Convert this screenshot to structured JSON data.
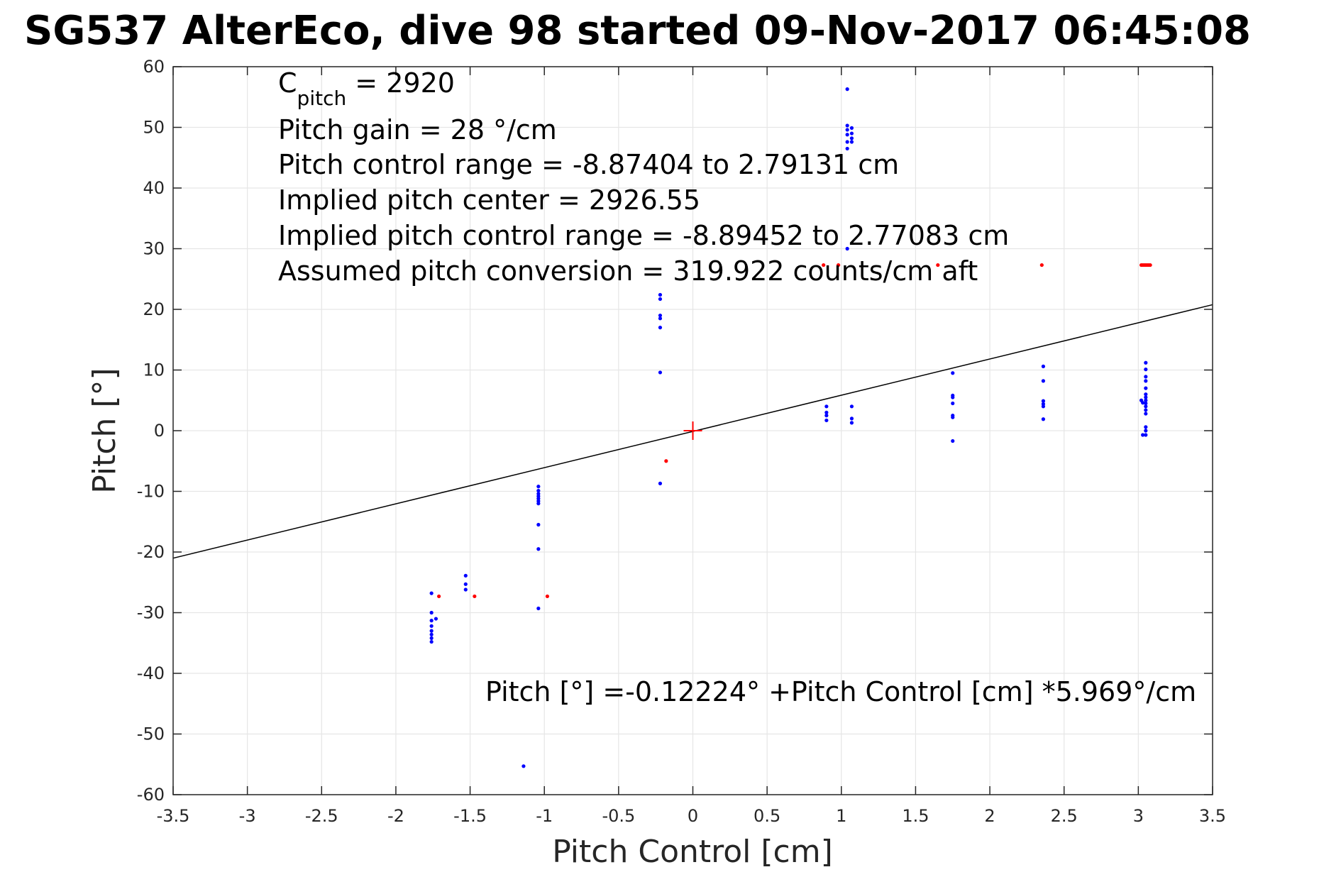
{
  "chart_data": {
    "type": "scatter",
    "title": "SG537 AlterEco, dive 98 started 09-Nov-2017 06:45:08",
    "xlabel": "Pitch Control [cm]",
    "ylabel": "Pitch [°]",
    "xlim": [
      -3.5,
      3.5
    ],
    "ylim": [
      -60,
      60
    ],
    "xticks": [
      -3.5,
      -3,
      -2.5,
      -2,
      -1.5,
      -1,
      -0.5,
      0,
      0.5,
      1,
      1.5,
      2,
      2.5,
      3,
      3.5
    ],
    "xtick_labels": [
      "-3.5",
      "-3",
      "-2.5",
      "-2",
      "-1.5",
      "-1",
      "-0.5",
      "0",
      "0.5",
      "1",
      "1.5",
      "2",
      "2.5",
      "3",
      "3.5"
    ],
    "yticks": [
      60,
      50,
      40,
      30,
      20,
      10,
      0,
      -10,
      -20,
      -30,
      -40,
      -50,
      -60
    ],
    "ytick_labels": [
      "60",
      "50",
      "40",
      "30",
      "20",
      "10",
      "0",
      "-10",
      "-20",
      "-30",
      "-40",
      "-50",
      "-60"
    ],
    "grid": true,
    "annotations": {
      "c_pitch_main": "C",
      "c_pitch_sub": "pitch",
      "c_pitch_value": " = 2920",
      "lines": [
        "Pitch gain = 28 °/cm",
        "Pitch control range = -8.87404 to 2.79131 cm",
        "Implied pitch center = 2926.55",
        "Implied pitch control range = -8.89452 to 2.77083 cm",
        "Assumed pitch conversion = 319.922 counts/cm aft"
      ],
      "fit_equation": "Pitch [°] =-0.12224° +Pitch Control [cm] *5.969°/cm"
    },
    "colors": {
      "blue": "#0000ff",
      "red": "#ff0000",
      "fit": "#000000",
      "grid": "#e6e6e6"
    },
    "fit_line": {
      "intercept": -0.12224,
      "slope": 5.969
    },
    "center_marker": {
      "x": 0,
      "y": 0,
      "color": "#ff0000"
    },
    "series": [
      {
        "color": "blue",
        "points": [
          [
            -1.76,
            -26.8
          ],
          [
            -1.76,
            -30.0
          ],
          [
            -1.76,
            -31.3
          ],
          [
            -1.76,
            -32.2
          ],
          [
            -1.76,
            -33.0
          ],
          [
            -1.76,
            -33.6
          ],
          [
            -1.76,
            -34.2
          ],
          [
            -1.76,
            -34.8
          ],
          [
            -1.73,
            -31.0
          ],
          [
            -1.53,
            -23.9
          ],
          [
            -1.53,
            -25.3
          ],
          [
            -1.53,
            -26.2
          ],
          [
            -1.04,
            -9.2
          ],
          [
            -1.04,
            -9.9
          ],
          [
            -1.04,
            -10.4
          ],
          [
            -1.04,
            -10.8
          ],
          [
            -1.04,
            -11.2
          ],
          [
            -1.04,
            -11.6
          ],
          [
            -1.04,
            -12.0
          ],
          [
            -1.04,
            -15.5
          ],
          [
            -1.04,
            -19.5
          ],
          [
            -1.04,
            -29.3
          ],
          [
            -1.14,
            -55.3
          ],
          [
            -0.22,
            22.4
          ],
          [
            -0.22,
            21.7
          ],
          [
            -0.22,
            19.0
          ],
          [
            -0.22,
            18.5
          ],
          [
            -0.22,
            17.0
          ],
          [
            -0.22,
            9.6
          ],
          [
            -0.22,
            -8.7
          ],
          [
            1.04,
            56.3
          ],
          [
            1.04,
            50.3
          ],
          [
            1.04,
            49.6
          ],
          [
            1.04,
            48.8
          ],
          [
            1.04,
            47.6
          ],
          [
            1.04,
            46.5
          ],
          [
            1.04,
            30.0
          ],
          [
            1.07,
            49.9
          ],
          [
            1.07,
            49.0
          ],
          [
            1.07,
            48.2
          ],
          [
            1.07,
            47.6
          ],
          [
            0.9,
            4.0
          ],
          [
            0.9,
            3.0
          ],
          [
            0.9,
            2.5
          ],
          [
            0.9,
            1.7
          ],
          [
            1.07,
            4.0
          ],
          [
            1.07,
            2.0
          ],
          [
            1.07,
            1.3
          ],
          [
            1.75,
            9.5
          ],
          [
            1.75,
            5.8
          ],
          [
            1.75,
            5.5
          ],
          [
            1.75,
            4.5
          ],
          [
            1.75,
            2.5
          ],
          [
            1.75,
            2.2
          ],
          [
            1.75,
            -1.7
          ],
          [
            2.36,
            10.6
          ],
          [
            2.36,
            8.2
          ],
          [
            2.36,
            4.9
          ],
          [
            2.36,
            4.4
          ],
          [
            2.36,
            4.0
          ],
          [
            2.36,
            1.9
          ],
          [
            3.05,
            11.2
          ],
          [
            3.05,
            10.1
          ],
          [
            3.05,
            8.9
          ],
          [
            3.05,
            8.2
          ],
          [
            3.05,
            7.0
          ],
          [
            3.05,
            6.0
          ],
          [
            3.05,
            5.5
          ],
          [
            3.05,
            5.0
          ],
          [
            3.05,
            4.5
          ],
          [
            3.05,
            4.0
          ],
          [
            3.05,
            3.4
          ],
          [
            3.05,
            2.8
          ],
          [
            3.05,
            0.6
          ],
          [
            3.05,
            0.0
          ],
          [
            3.05,
            -0.7
          ],
          [
            3.02,
            5.0
          ],
          [
            3.03,
            4.6
          ],
          [
            3.03,
            -0.7
          ]
        ]
      },
      {
        "color": "red",
        "points": [
          [
            -1.71,
            -27.3
          ],
          [
            -1.47,
            -27.3
          ],
          [
            -0.98,
            -27.3
          ],
          [
            -0.18,
            -5.0
          ],
          [
            0.88,
            27.3
          ],
          [
            0.98,
            27.3
          ],
          [
            1.65,
            27.3
          ],
          [
            2.35,
            27.3
          ],
          [
            3.02,
            27.3
          ],
          [
            3.03,
            27.3
          ],
          [
            3.04,
            27.3
          ],
          [
            3.05,
            27.3
          ],
          [
            3.06,
            27.3
          ],
          [
            3.07,
            27.3
          ],
          [
            3.08,
            27.3
          ]
        ]
      }
    ]
  }
}
